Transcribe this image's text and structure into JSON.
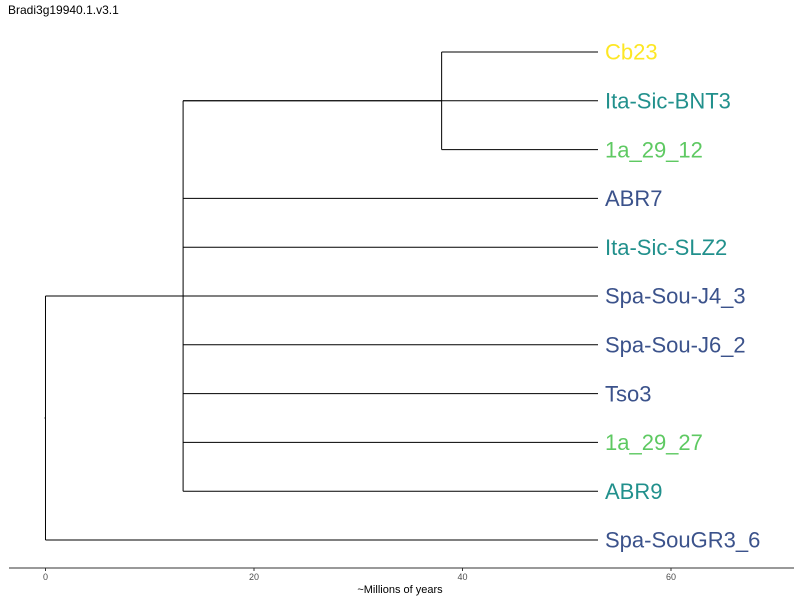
{
  "title": "Bradi3g19940.1.v3.1",
  "axis": {
    "label": "~Millions of years",
    "ticks": [
      0,
      20,
      40,
      60
    ],
    "range": [
      -3.5,
      71.8
    ]
  },
  "colors": {
    "yellow": "#fde725",
    "teal": "#21908c",
    "green": "#5ec962",
    "navy": "#3b528b",
    "branch": "#000000"
  },
  "tree": {
    "root": 0,
    "clade_node": 13.2,
    "subclade_node": 38,
    "tip_age": 53
  },
  "tips": [
    {
      "label": "Cb23",
      "color": "#fde725"
    },
    {
      "label": "Ita-Sic-BNT3",
      "color": "#21908c"
    },
    {
      "label": "1a_29_12",
      "color": "#5ec962"
    },
    {
      "label": "ABR7",
      "color": "#3b528b"
    },
    {
      "label": "Ita-Sic-SLZ2",
      "color": "#21908c"
    },
    {
      "label": "Spa-Sou-J4_3",
      "color": "#3b528b"
    },
    {
      "label": "Spa-Sou-J6_2",
      "color": "#3b528b"
    },
    {
      "label": "Tso3",
      "color": "#3b528b"
    },
    {
      "label": "1a_29_27",
      "color": "#5ec962"
    },
    {
      "label": "ABR9",
      "color": "#21908c"
    },
    {
      "label": "Spa-SouGR3_6",
      "color": "#3b528b"
    }
  ]
}
